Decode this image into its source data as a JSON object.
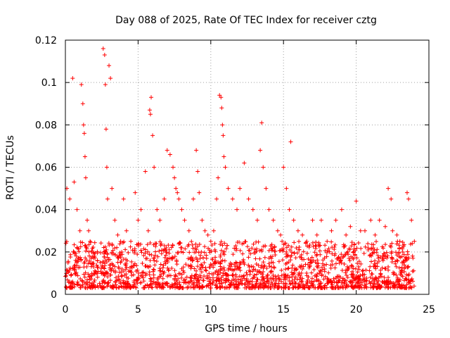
{
  "chart_data": {
    "type": "scatter",
    "title": "Day 088 of 2025, Rate Of TEC Index for receiver cztg",
    "xlabel": "GPS time / hours",
    "ylabel": "ROTI / TECUs",
    "xlim": [
      0,
      25
    ],
    "ylim": [
      0,
      0.12
    ],
    "xticks": [
      0,
      5,
      10,
      15,
      20,
      25
    ],
    "xtick_labels": [
      "0",
      "5",
      "10",
      "15",
      "20",
      "25"
    ],
    "yticks": [
      0,
      0.02,
      0.04,
      0.06,
      0.08,
      0.1,
      0.12
    ],
    "ytick_labels": [
      "0",
      "0.02",
      "0.04",
      "0.06",
      "0.08",
      "0.1",
      "0.12"
    ],
    "grid": true,
    "marker": "+",
    "color": "#ff0000",
    "series": [
      {
        "name": "ROTI",
        "x": [
          0.1,
          0.3,
          0.5,
          0.6,
          0.8,
          1.0,
          1.1,
          1.2,
          1.25,
          1.3,
          1.35,
          1.4,
          1.5,
          1.6,
          1.7,
          1.8,
          2.0,
          2.2,
          2.4,
          2.6,
          2.7,
          2.75,
          2.8,
          2.85,
          2.9,
          3.0,
          3.1,
          3.2,
          3.4,
          3.6,
          3.8,
          4.0,
          4.2,
          4.5,
          4.8,
          5.0,
          5.2,
          5.5,
          5.7,
          5.8,
          5.85,
          5.9,
          6.0,
          6.1,
          6.3,
          6.5,
          6.8,
          7.0,
          7.2,
          7.4,
          7.5,
          7.6,
          7.7,
          7.8,
          8.0,
          8.2,
          8.5,
          8.8,
          9.0,
          9.1,
          9.2,
          9.4,
          9.6,
          9.8,
          10.0,
          10.2,
          10.4,
          10.5,
          10.6,
          10.7,
          10.75,
          10.8,
          10.85,
          10.9,
          11.0,
          11.2,
          11.5,
          11.8,
          12.0,
          12.3,
          12.6,
          12.9,
          13.2,
          13.4,
          13.5,
          13.6,
          13.8,
          14.0,
          14.3,
          14.6,
          14.8,
          14.9,
          15.0,
          15.2,
          15.4,
          15.5,
          15.7,
          16.0,
          16.3,
          16.6,
          17.0,
          17.3,
          17.6,
          18.0,
          18.3,
          18.6,
          19.0,
          19.3,
          19.6,
          20.0,
          20.3,
          20.6,
          21.0,
          21.3,
          21.6,
          22.0,
          22.2,
          22.4,
          22.5,
          22.8,
          23.0,
          23.2,
          23.5,
          23.6,
          23.8,
          24.0
        ],
        "y": [
          0.05,
          0.045,
          0.102,
          0.053,
          0.04,
          0.03,
          0.099,
          0.09,
          0.08,
          0.076,
          0.065,
          0.055,
          0.035,
          0.03,
          0.025,
          0.02,
          0.018,
          0.016,
          0.015,
          0.116,
          0.113,
          0.099,
          0.078,
          0.06,
          0.045,
          0.108,
          0.102,
          0.05,
          0.035,
          0.028,
          0.025,
          0.045,
          0.03,
          0.025,
          0.048,
          0.035,
          0.04,
          0.058,
          0.03,
          0.087,
          0.085,
          0.093,
          0.075,
          0.06,
          0.04,
          0.035,
          0.045,
          0.068,
          0.066,
          0.06,
          0.055,
          0.05,
          0.048,
          0.045,
          0.04,
          0.035,
          0.03,
          0.045,
          0.068,
          0.058,
          0.048,
          0.035,
          0.03,
          0.028,
          0.025,
          0.03,
          0.045,
          0.055,
          0.094,
          0.093,
          0.088,
          0.08,
          0.075,
          0.065,
          0.06,
          0.05,
          0.045,
          0.04,
          0.05,
          0.062,
          0.045,
          0.04,
          0.035,
          0.068,
          0.081,
          0.06,
          0.05,
          0.04,
          0.035,
          0.03,
          0.028,
          0.025,
          0.06,
          0.05,
          0.04,
          0.072,
          0.035,
          0.03,
          0.028,
          0.025,
          0.035,
          0.028,
          0.035,
          0.025,
          0.03,
          0.035,
          0.04,
          0.028,
          0.032,
          0.044,
          0.03,
          0.03,
          0.035,
          0.028,
          0.035,
          0.032,
          0.05,
          0.045,
          0.03,
          0.028,
          0.025,
          0.02,
          0.048,
          0.045,
          0.035,
          0.025
        ],
        "baseline_band": [
          0.003,
          0.025
        ]
      }
    ]
  }
}
